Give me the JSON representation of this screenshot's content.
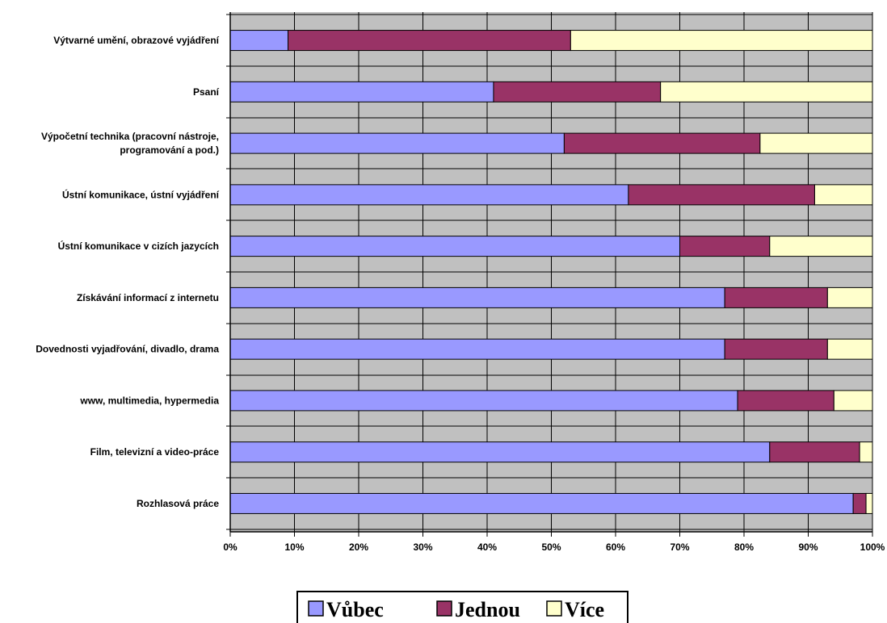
{
  "chart_data": {
    "type": "bar",
    "orientation": "horizontal",
    "stacked": "percent",
    "categories": [
      [
        "Výtvarné umění, obrazové vyjádření"
      ],
      [
        "Psaní"
      ],
      [
        "Výpočetní technika (pracovní nástroje,",
        "programování a pod.)"
      ],
      [
        "Ústní komunikace, ústní vyjádření"
      ],
      [
        "Ústní komunikace v cizích jazycích"
      ],
      [
        "Získávání informací z internetu"
      ],
      [
        "Dovednosti vyjadřování, divadlo, drama"
      ],
      [
        "www, multimedia, hypermedia"
      ],
      [
        "Film, televizní a video-práce"
      ],
      [
        "Rozhlasová práce"
      ]
    ],
    "series": [
      {
        "name": "Vůbec",
        "color": "#9999ff",
        "values": [
          9,
          41,
          52,
          62,
          70,
          77,
          77,
          79,
          84,
          97
        ]
      },
      {
        "name": "Jednou",
        "color": "#993366",
        "values": [
          44,
          26,
          30.5,
          29,
          14,
          16,
          16,
          15,
          14,
          2
        ]
      },
      {
        "name": "Více",
        "color": "#ffffcc",
        "values": [
          47,
          33,
          17.5,
          9,
          16,
          7,
          7,
          6,
          2,
          1
        ]
      }
    ],
    "xlim": [
      0,
      100
    ],
    "x_ticks": [
      "0%",
      "10%",
      "20%",
      "30%",
      "40%",
      "50%",
      "60%",
      "70%",
      "80%",
      "90%",
      "100%"
    ],
    "plot_background": "#c0c0c0",
    "grid": true,
    "legend_position": "bottom"
  }
}
